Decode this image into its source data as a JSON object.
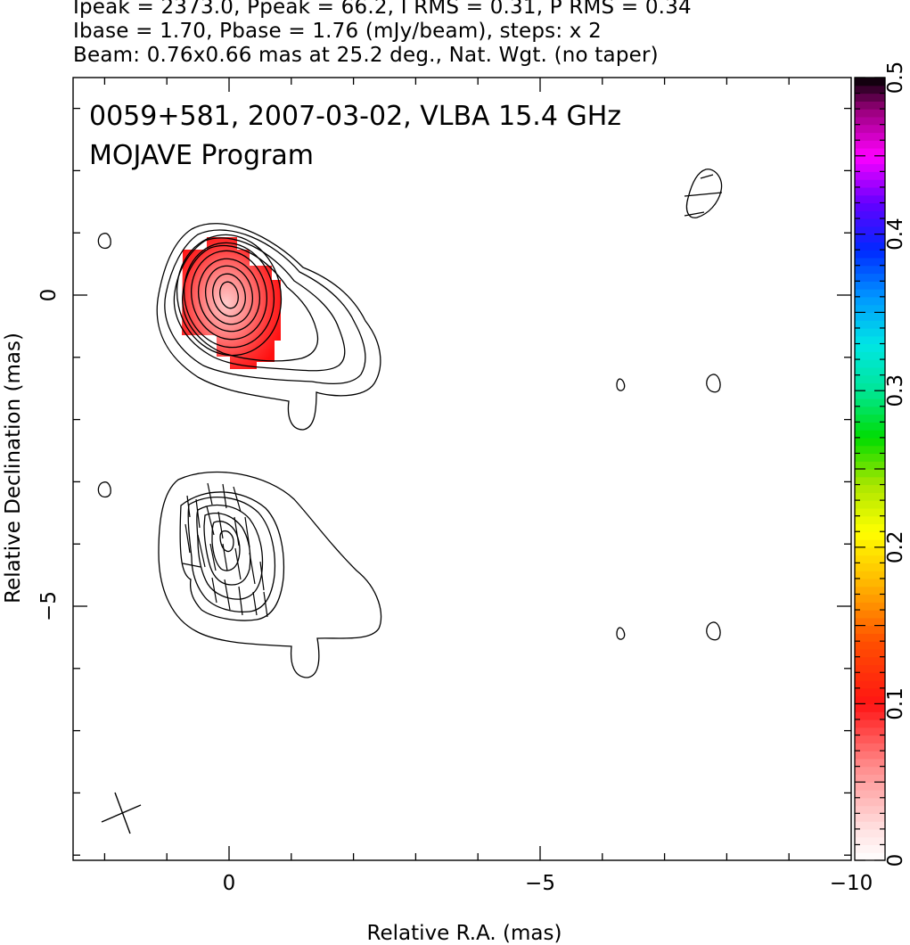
{
  "header": {
    "line1": "Ipeak = 2373.0, Ppeak = 66.2, I RMS = 0.31, P RMS = 0.34",
    "line2": "Ibase = 1.70, Pbase = 1.76 (mJy/beam), steps: x 2",
    "line3": "Beam: 0.76x0.66 mas at 25.2 deg., Nat. Wgt. (no taper)"
  },
  "chart_data": {
    "type": "contour",
    "title": "0059+581, 2007-03-02, VLBA 15.4 GHz",
    "subtitle": "MOJAVE Program",
    "xlabel": "Relative R.A. (mas)",
    "ylabel": "Relative Declination (mas)",
    "xlim": [
      2.5,
      -9.9
    ],
    "ylim": [
      -9.0,
      3.5
    ],
    "x_ticks": [
      0,
      -5,
      -10
    ],
    "x_tick_labels": [
      "0",
      "−5",
      "−10"
    ],
    "y_ticks": [
      0,
      -5
    ],
    "y_tick_labels": [
      "0",
      "−5"
    ],
    "colorbar": {
      "min": 0,
      "max": 0.5,
      "ticks": [
        0,
        0.1,
        0.2,
        0.3,
        0.4,
        0.5
      ],
      "tick_labels": [
        "0",
        "0.1",
        "0.2",
        "0.3",
        "0.4",
        "0.5"
      ]
    },
    "contour_levels_mjy_per_beam": [
      1.7,
      3.4,
      6.8,
      13.6,
      27.2,
      54.4,
      108.8,
      217.6,
      435.2,
      870.4,
      1740.8
    ],
    "components": [
      {
        "x": 0.0,
        "y": 0.0,
        "peak_mjy": 2373.0,
        "polarized": true
      },
      {
        "x": 0.0,
        "y": -3.9,
        "peak_mjy": 60.0,
        "polarized": false
      }
    ],
    "beam": {
      "major_mas": 0.76,
      "minor_mas": 0.66,
      "pa_deg": 25.2
    }
  }
}
